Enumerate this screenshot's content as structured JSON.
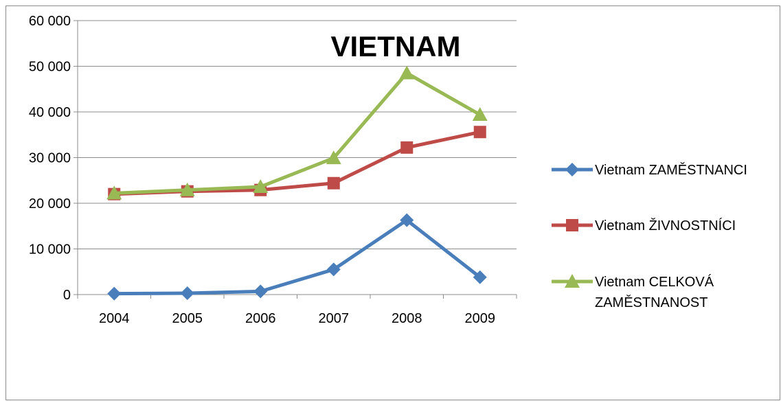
{
  "chart_data": {
    "type": "line",
    "title": "VIETNAM",
    "xlabel": "",
    "ylabel": "",
    "categories": [
      "2004",
      "2005",
      "2006",
      "2007",
      "2008",
      "2009"
    ],
    "ylim": [
      0,
      60000
    ],
    "yticks": [
      0,
      10000,
      20000,
      30000,
      40000,
      50000,
      60000
    ],
    "ytick_labels": [
      "0",
      "10 000",
      "20 000",
      "30 000",
      "40 000",
      "50 000",
      "60 000"
    ],
    "grid": true,
    "legend_position": "right",
    "series": [
      {
        "name": "Vietnam ZAMĚSTNANCI",
        "marker": "diamond",
        "color": "#4a7ebb",
        "values": [
          200,
          300,
          700,
          5500,
          16300,
          3800
        ]
      },
      {
        "name": "Vietnam ŽIVNOSTNÍCI",
        "marker": "square",
        "color": "#be4b48",
        "values": [
          22000,
          22600,
          22900,
          24400,
          32200,
          35600
        ]
      },
      {
        "name": "Vietnam CELKOVÁ ZAMĚSTNANOST",
        "marker": "triangle",
        "color": "#98b954",
        "values": [
          22200,
          22900,
          23600,
          29900,
          48500,
          39400
        ]
      }
    ]
  }
}
